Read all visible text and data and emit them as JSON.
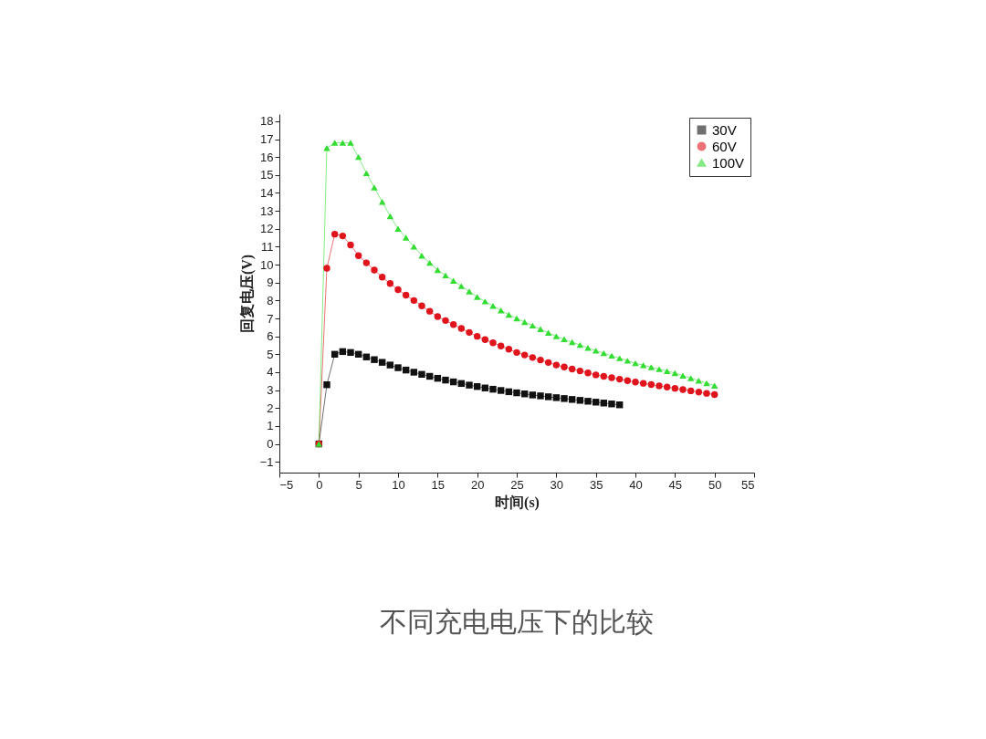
{
  "chart_data": {
    "type": "line",
    "xlabel": "时间(s)",
    "ylabel": "回复电压(V)",
    "annotations": [
      "不同充电电压下的比较"
    ],
    "xlim": [
      -5,
      55
    ],
    "xticks": [
      -5,
      0,
      5,
      10,
      15,
      20,
      25,
      30,
      35,
      40,
      45,
      50,
      55
    ],
    "ylim": [
      -1.6,
      18.4
    ],
    "yticks": [
      -1,
      0,
      1,
      2,
      3,
      4,
      5,
      6,
      7,
      8,
      9,
      10,
      11,
      12,
      13,
      14,
      15,
      16,
      17,
      18
    ],
    "grid": false,
    "legend": "top right",
    "line_style": "solid",
    "series": [
      {
        "name": "30V",
        "color": "#111111",
        "marker": "square",
        "x": [
          0,
          1,
          2,
          3,
          4,
          5,
          6,
          7,
          8,
          9,
          10,
          11,
          12,
          13,
          14,
          15,
          16,
          17,
          18,
          19,
          20,
          21,
          22,
          23,
          24,
          25,
          26,
          27,
          28,
          29,
          30,
          31,
          32,
          33,
          34,
          35,
          36,
          37,
          38
        ],
        "values": [
          0,
          3.3,
          5.0,
          5.15,
          5.1,
          5.0,
          4.85,
          4.7,
          4.55,
          4.4,
          4.25,
          4.12,
          4.0,
          3.88,
          3.77,
          3.66,
          3.56,
          3.46,
          3.37,
          3.28,
          3.2,
          3.12,
          3.05,
          2.98,
          2.91,
          2.85,
          2.79,
          2.73,
          2.68,
          2.63,
          2.58,
          2.53,
          2.48,
          2.43,
          2.38,
          2.33,
          2.28,
          2.23,
          2.18
        ]
      },
      {
        "name": "60V",
        "color": "#e0141c",
        "marker": "circle",
        "x": [
          0,
          1,
          2,
          3,
          4,
          5,
          6,
          7,
          8,
          9,
          10,
          11,
          12,
          13,
          14,
          15,
          16,
          17,
          18,
          19,
          20,
          21,
          22,
          23,
          24,
          25,
          26,
          27,
          28,
          29,
          30,
          31,
          32,
          33,
          34,
          35,
          36,
          37,
          38,
          39,
          40,
          41,
          42,
          43,
          44,
          45,
          46,
          47,
          48,
          49,
          50
        ],
        "values": [
          0,
          9.8,
          11.7,
          11.6,
          11.1,
          10.5,
          10.1,
          9.7,
          9.3,
          8.95,
          8.6,
          8.3,
          8.0,
          7.7,
          7.4,
          7.1,
          6.88,
          6.66,
          6.44,
          6.22,
          6.0,
          5.82,
          5.64,
          5.46,
          5.28,
          5.1,
          4.96,
          4.82,
          4.68,
          4.54,
          4.4,
          4.29,
          4.18,
          4.07,
          3.96,
          3.85,
          3.77,
          3.69,
          3.61,
          3.53,
          3.45,
          3.38,
          3.31,
          3.24,
          3.17,
          3.1,
          3.03,
          2.96,
          2.89,
          2.82,
          2.75
        ]
      },
      {
        "name": "100V",
        "color": "#33dd33",
        "marker": "triangle",
        "x": [
          0,
          1,
          2,
          3,
          4,
          5,
          6,
          7,
          8,
          9,
          10,
          11,
          12,
          13,
          14,
          15,
          16,
          17,
          18,
          19,
          20,
          21,
          22,
          23,
          24,
          25,
          26,
          27,
          28,
          29,
          30,
          31,
          32,
          33,
          34,
          35,
          36,
          37,
          38,
          39,
          40,
          41,
          42,
          43,
          44,
          45,
          46,
          47,
          48,
          49,
          50
        ],
        "values": [
          0,
          16.5,
          16.8,
          16.8,
          16.8,
          16.0,
          15.1,
          14.3,
          13.5,
          12.7,
          12.0,
          11.5,
          11.0,
          10.5,
          10.1,
          9.7,
          9.4,
          9.1,
          8.8,
          8.5,
          8.2,
          7.95,
          7.7,
          7.45,
          7.2,
          7.0,
          6.8,
          6.6,
          6.4,
          6.2,
          6.0,
          5.84,
          5.68,
          5.52,
          5.36,
          5.2,
          5.06,
          4.92,
          4.78,
          4.64,
          4.5,
          4.39,
          4.28,
          4.17,
          4.06,
          3.95,
          3.81,
          3.67,
          3.53,
          3.39,
          3.25
        ]
      }
    ]
  }
}
